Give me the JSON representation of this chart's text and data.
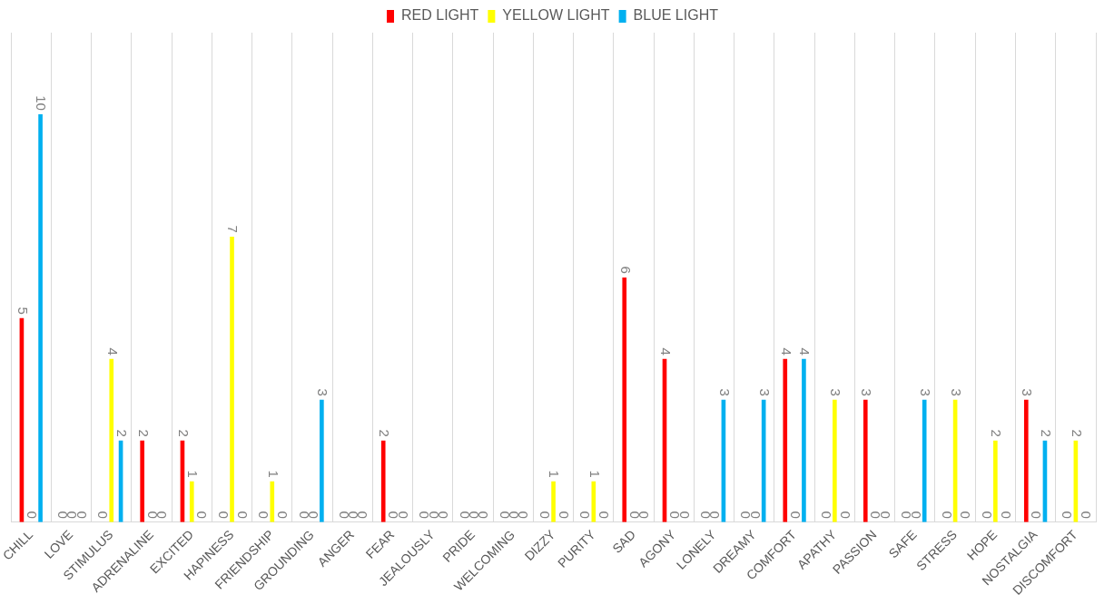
{
  "chart_data": {
    "type": "bar",
    "categories": [
      "CHILL",
      "LOVE",
      "STIMULUS",
      "ADRENALINE",
      "EXCITED",
      "HAPINESS",
      "FRIENDSHIP",
      "GROUNDING",
      "ANGER",
      "FEAR",
      "JEALOUSLY",
      "PRIDE",
      "WELCOMING",
      "DIZZY",
      "PURITY",
      "SAD",
      "AGONY",
      "LONELY",
      "DREAMY",
      "COMFORT",
      "APATHY",
      "PASSION",
      "SAFE",
      "STRESS",
      "HOPE",
      "NOSTALGIA",
      "DISCOMFORT"
    ],
    "series": [
      {
        "name": "RED LIGHT",
        "color": "#ff0000",
        "values": [
          5,
          0,
          0,
          2,
          2,
          0,
          0,
          0,
          0,
          2,
          0,
          0,
          0,
          0,
          0,
          6,
          4,
          0,
          0,
          4,
          0,
          3,
          0,
          0,
          0,
          3,
          0
        ]
      },
      {
        "name": "YELLOW LIGHT",
        "color": "#ffff00",
        "values": [
          0,
          0,
          4,
          0,
          1,
          7,
          1,
          0,
          0,
          0,
          0,
          0,
          0,
          1,
          1,
          0,
          0,
          0,
          0,
          0,
          3,
          0,
          0,
          3,
          2,
          0,
          2
        ]
      },
      {
        "name": "BLUE LIGHT",
        "color": "#00b0f0",
        "values": [
          10,
          0,
          2,
          0,
          0,
          0,
          0,
          3,
          0,
          0,
          0,
          0,
          0,
          0,
          0,
          0,
          0,
          3,
          3,
          4,
          0,
          0,
          3,
          0,
          0,
          2,
          0
        ]
      }
    ],
    "data_labels": true,
    "grid": "x",
    "legend": "top",
    "tick_labels": "x"
  }
}
